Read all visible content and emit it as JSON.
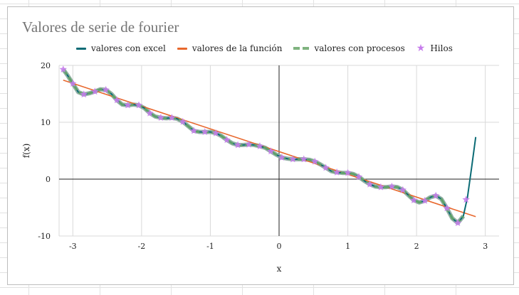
{
  "chart_data": {
    "type": "line",
    "title": "Valores de serie de fourier",
    "xlabel": "x",
    "ylabel": "f(x)",
    "xlim": [
      -3.2,
      3.2
    ],
    "ylim": [
      -10,
      20
    ],
    "xticks": [
      -3,
      -2,
      -1,
      0,
      1,
      2,
      3
    ],
    "yticks": [
      -10,
      0,
      10,
      20
    ],
    "grid": true,
    "legend_position": "top",
    "series": [
      {
        "name": "valores con excel",
        "style": "line",
        "color": "#0b6b75",
        "x": [
          -3.14,
          -3.08,
          -3.0,
          -2.92,
          -2.84,
          -2.76,
          -2.68,
          -2.6,
          -2.52,
          -2.44,
          -2.36,
          -2.28,
          -2.2,
          -2.12,
          -2.04,
          -1.96,
          -1.88,
          -1.8,
          -1.72,
          -1.64,
          -1.56,
          -1.48,
          -1.4,
          -1.32,
          -1.24,
          -1.16,
          -1.08,
          -1.0,
          -0.92,
          -0.84,
          -0.76,
          -0.68,
          -0.6,
          -0.52,
          -0.44,
          -0.36,
          -0.28,
          -0.2,
          -0.12,
          -0.04,
          0.04,
          0.12,
          0.2,
          0.28,
          0.36,
          0.44,
          0.52,
          0.6,
          0.68,
          0.76,
          0.84,
          0.92,
          1.0,
          1.08,
          1.16,
          1.24,
          1.32,
          1.4,
          1.48,
          1.56,
          1.64,
          1.72,
          1.8,
          1.88,
          1.96,
          2.04,
          2.12,
          2.2,
          2.28,
          2.36,
          2.44,
          2.52,
          2.6,
          2.68,
          2.74,
          2.8,
          2.86
        ],
        "y": [
          19.3,
          18.3,
          16.8,
          15.3,
          14.9,
          15.1,
          15.4,
          15.8,
          15.7,
          15.0,
          13.9,
          13.1,
          13.0,
          13.1,
          13.0,
          12.5,
          11.6,
          11.0,
          10.8,
          10.7,
          10.8,
          10.6,
          10.1,
          9.3,
          8.5,
          8.3,
          8.3,
          8.3,
          8.1,
          7.6,
          6.9,
          6.3,
          6.0,
          6.0,
          6.1,
          6.0,
          5.8,
          5.5,
          4.9,
          4.3,
          3.8,
          3.6,
          3.5,
          3.5,
          3.5,
          3.4,
          3.1,
          2.6,
          2.0,
          1.4,
          1.2,
          1.1,
          1.1,
          0.9,
          0.4,
          -0.3,
          -0.9,
          -1.3,
          -1.4,
          -1.4,
          -1.3,
          -1.4,
          -1.9,
          -2.8,
          -3.7,
          -4.1,
          -3.8,
          -3.2,
          -2.9,
          -3.5,
          -5.1,
          -6.9,
          -7.7,
          -6.5,
          -3.2,
          2.0,
          7.4
        ]
      },
      {
        "name": "valores de la función",
        "style": "line",
        "color": "#e8672c",
        "x": [
          -3.14,
          2.86
        ],
        "y": [
          17.4,
          -6.6
        ]
      },
      {
        "name": "valores con procesos",
        "style": "dashed",
        "color": "#6aa96a",
        "x": [
          -3.14,
          -3.08,
          -3.0,
          -2.92,
          -2.84,
          -2.76,
          -2.68,
          -2.6,
          -2.52,
          -2.44,
          -2.36,
          -2.28,
          -2.2,
          -2.12,
          -2.04,
          -1.96,
          -1.88,
          -1.8,
          -1.72,
          -1.64,
          -1.56,
          -1.48,
          -1.4,
          -1.32,
          -1.24,
          -1.16,
          -1.08,
          -1.0,
          -0.92,
          -0.84,
          -0.76,
          -0.68,
          -0.6,
          -0.52,
          -0.44,
          -0.36,
          -0.28,
          -0.2,
          -0.12,
          -0.04,
          0.04,
          0.12,
          0.2,
          0.28,
          0.36,
          0.44,
          0.52,
          0.6,
          0.68,
          0.76,
          0.84,
          0.92,
          1.0,
          1.08,
          1.16,
          1.24,
          1.32,
          1.4,
          1.48,
          1.56,
          1.64,
          1.72,
          1.8,
          1.88,
          1.96,
          2.04,
          2.12,
          2.2,
          2.28,
          2.36,
          2.44,
          2.52,
          2.6,
          2.68
        ],
        "y": [
          19.3,
          18.3,
          16.8,
          15.3,
          14.9,
          15.1,
          15.4,
          15.8,
          15.7,
          15.0,
          13.9,
          13.1,
          13.0,
          13.1,
          13.0,
          12.5,
          11.6,
          11.0,
          10.8,
          10.7,
          10.8,
          10.6,
          10.1,
          9.3,
          8.5,
          8.3,
          8.3,
          8.3,
          8.1,
          7.6,
          6.9,
          6.3,
          6.0,
          6.0,
          6.1,
          6.0,
          5.8,
          5.5,
          4.9,
          4.3,
          3.8,
          3.6,
          3.5,
          3.5,
          3.5,
          3.4,
          3.1,
          2.6,
          2.0,
          1.4,
          1.2,
          1.1,
          1.1,
          0.9,
          0.4,
          -0.3,
          -0.9,
          -1.3,
          -1.4,
          -1.4,
          -1.3,
          -1.4,
          -1.9,
          -2.8,
          -3.7,
          -4.1,
          -3.8,
          -3.2,
          -2.9,
          -3.5,
          -5.1,
          -6.9,
          -7.7,
          -6.5
        ]
      },
      {
        "name": "Hilos",
        "style": "markers",
        "marker": "star",
        "color": "#c77dec",
        "x": [
          -3.14,
          -3.0,
          -2.84,
          -2.68,
          -2.52,
          -2.36,
          -2.2,
          -2.04,
          -1.88,
          -1.72,
          -1.56,
          -1.4,
          -1.24,
          -1.08,
          -0.92,
          -0.76,
          -0.6,
          -0.44,
          -0.28,
          -0.12,
          0.04,
          0.2,
          0.36,
          0.52,
          0.68,
          0.84,
          1.0,
          1.16,
          1.32,
          1.48,
          1.64,
          1.8,
          1.96,
          2.12,
          2.28,
          2.44,
          2.6,
          2.72
        ],
        "y": [
          19.3,
          16.8,
          14.9,
          15.4,
          15.7,
          13.9,
          13.0,
          13.0,
          11.6,
          10.8,
          10.8,
          10.1,
          8.5,
          8.3,
          8.1,
          6.9,
          6.0,
          6.1,
          5.8,
          4.9,
          3.8,
          3.5,
          3.5,
          3.1,
          2.0,
          1.2,
          1.1,
          0.4,
          -0.9,
          -1.4,
          -1.3,
          -1.9,
          -3.7,
          -3.8,
          -2.9,
          -5.1,
          -7.7,
          -3.6
        ]
      }
    ]
  }
}
